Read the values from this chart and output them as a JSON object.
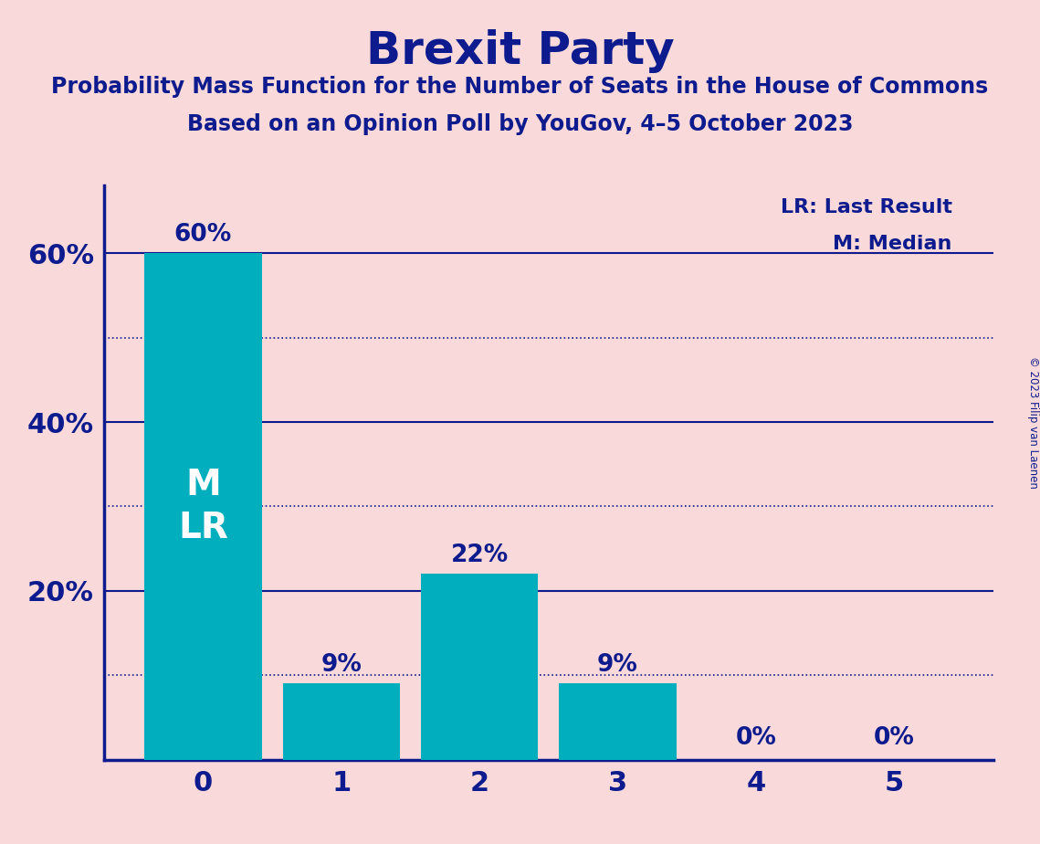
{
  "title": "Brexit Party",
  "subtitle1": "Probability Mass Function for the Number of Seats in the House of Commons",
  "subtitle2": "Based on an Opinion Poll by YouGov, 4–5 October 2023",
  "copyright": "© 2023 Filip van Laenen",
  "categories": [
    0,
    1,
    2,
    3,
    4,
    5
  ],
  "values": [
    60,
    9,
    22,
    9,
    0,
    0
  ],
  "bar_color": "#00AEBD",
  "background_color": "#F9D9D9",
  "title_color": "#0D1B8E",
  "bar_label_color": "#0D1B8E",
  "bar_text_color": "#FFFFFF",
  "axis_color": "#0D1B8E",
  "solid_gridline_color": "#0D1B8E",
  "dotted_gridline_color": "#0D1B8E",
  "solid_gridlines": [
    20,
    40,
    60
  ],
  "dotted_gridlines": [
    10,
    30,
    50
  ],
  "ylim": [
    0,
    68
  ],
  "yticks": [
    20,
    40,
    60
  ],
  "ytick_labels": [
    "20%",
    "40%",
    "60%"
  ],
  "legend_lr": "LR: Last Result",
  "legend_m": "M: Median"
}
